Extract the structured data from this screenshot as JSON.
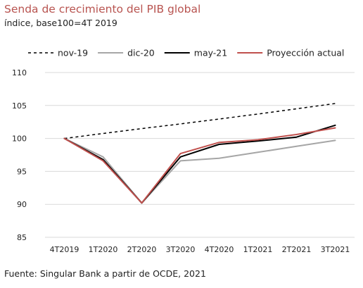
{
  "header": {
    "title": "Senda de crecimiento del PIB global",
    "subtitle": "índice, base100=4T 2019"
  },
  "footer": {
    "source": "Fuente: Singular Bank a partir de OCDE, 2021"
  },
  "colors": {
    "title": "#b85450",
    "text": "#222222",
    "grid": "#d9d9d9"
  },
  "chart_data": {
    "type": "line",
    "title": "Senda de crecimiento del PIB global",
    "subtitle": "índice, base100=4T 2019",
    "xlabel": "",
    "ylabel": "",
    "categories": [
      "4T2019",
      "1T2020",
      "2T2020",
      "3T2020",
      "4T2020",
      "1T2021",
      "2T2021",
      "3T2021"
    ],
    "ylim": [
      85,
      110
    ],
    "yticks": [
      85,
      90,
      95,
      100,
      105,
      110
    ],
    "grid": true,
    "legend_position": "top",
    "series": [
      {
        "name": "nov-19",
        "color": "#000000",
        "dash": "dashed",
        "values": [
          100.0,
          100.75,
          101.5,
          102.2,
          102.95,
          103.7,
          104.5,
          105.3
        ]
      },
      {
        "name": "dic-20",
        "color": "#a6a6a6",
        "dash": "solid",
        "values": [
          100.0,
          97.2,
          90.2,
          96.6,
          97.0,
          97.9,
          98.8,
          99.7
        ]
      },
      {
        "name": "may-21",
        "color": "#000000",
        "dash": "solid",
        "values": [
          100.0,
          96.8,
          90.2,
          97.2,
          99.1,
          99.6,
          100.2,
          102.0
        ]
      },
      {
        "name": "Proyección actual",
        "color": "#c0504d",
        "dash": "solid",
        "values": [
          100.0,
          96.6,
          90.2,
          97.7,
          99.4,
          99.8,
          100.6,
          101.6
        ]
      }
    ]
  }
}
